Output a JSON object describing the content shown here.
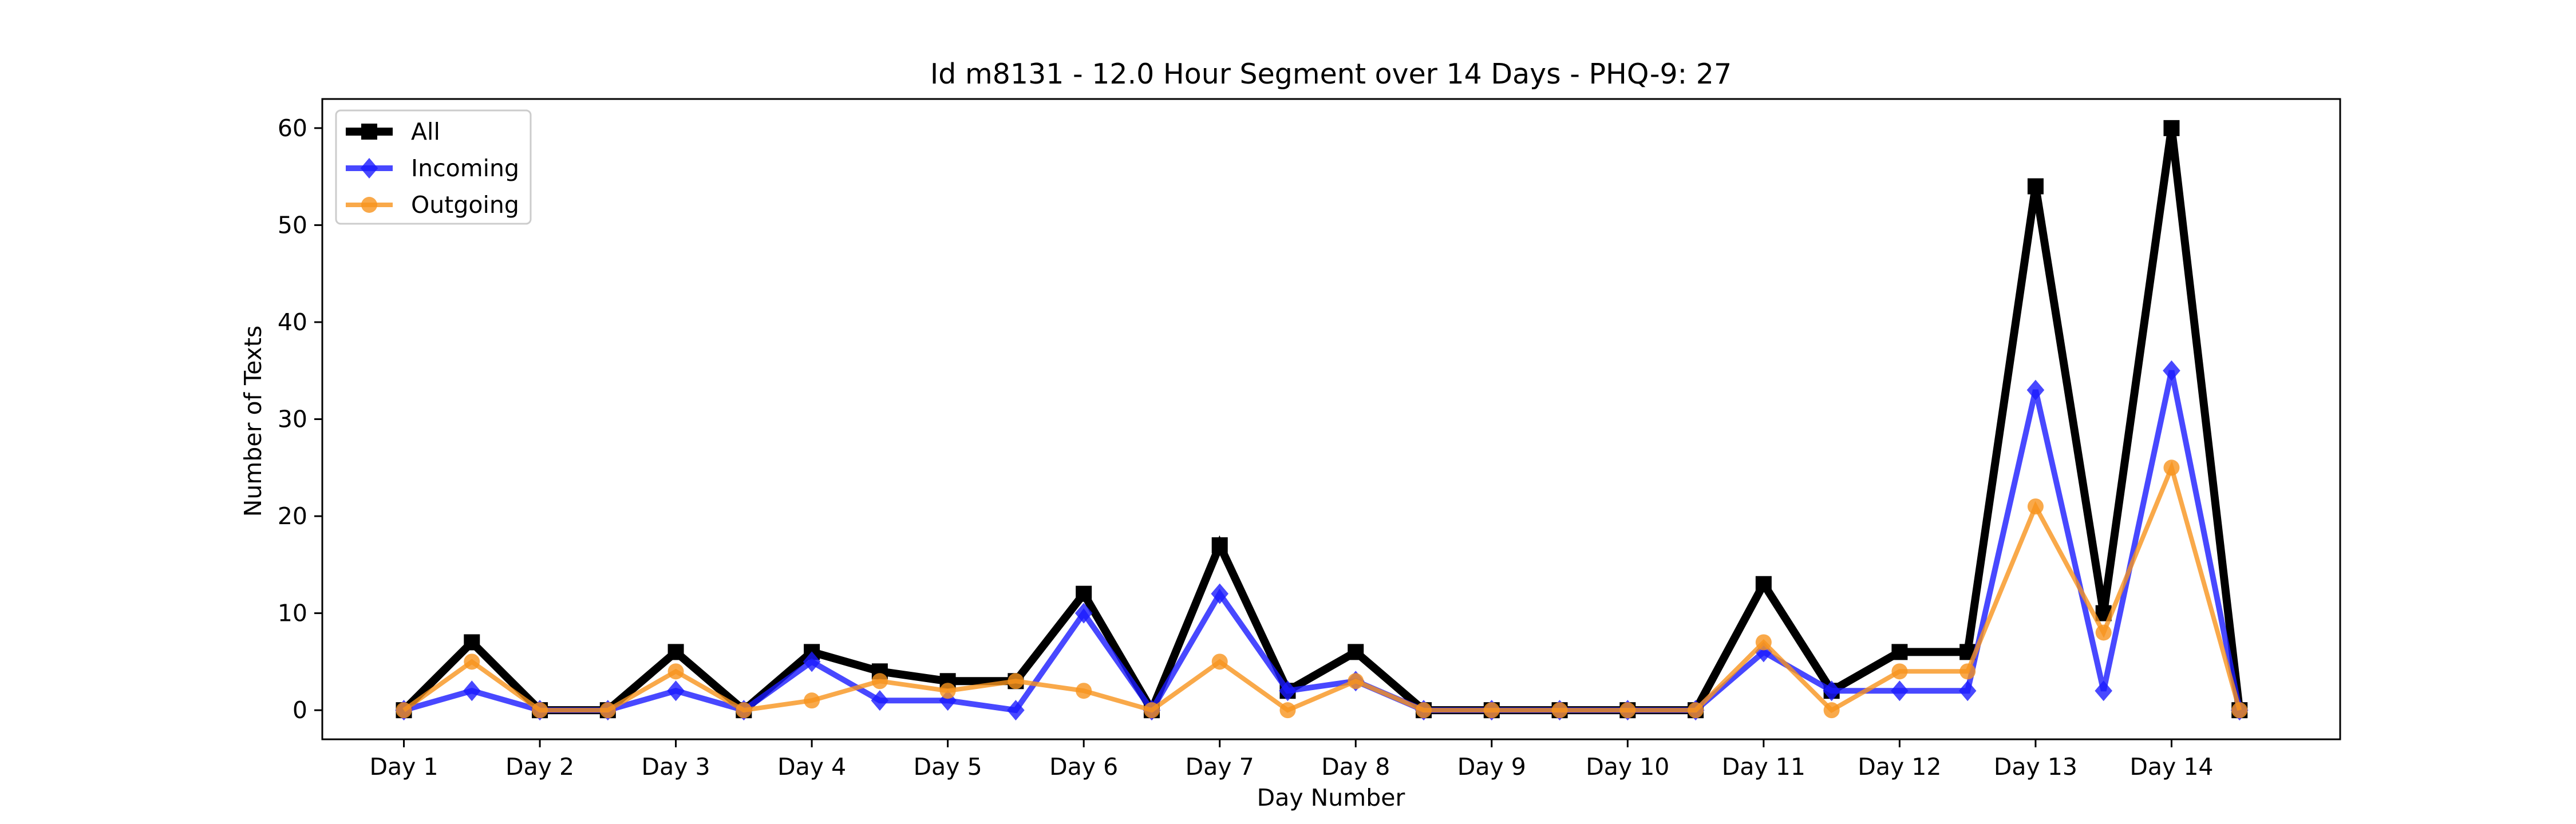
{
  "chart_data": {
    "type": "line",
    "title": "Id m8131 - 12.0 Hour Segment over 14 Days - PHQ-9: 27",
    "xlabel": "Day Number",
    "ylabel": "Number of Texts",
    "x": [
      1,
      1.5,
      2,
      2.5,
      3,
      3.5,
      4,
      4.5,
      5,
      5.5,
      6,
      6.5,
      7,
      7.5,
      8,
      8.5,
      9,
      9.5,
      10,
      10.5,
      11,
      11.5,
      12,
      12.5,
      13,
      13.5,
      14,
      14.5
    ],
    "x_ticks": [
      1,
      2,
      3,
      4,
      5,
      6,
      7,
      8,
      9,
      10,
      11,
      12,
      13,
      14
    ],
    "x_tick_labels": [
      "Day 1",
      "Day 2",
      "Day 3",
      "Day 4",
      "Day 5",
      "Day 6",
      "Day 7",
      "Day 8",
      "Day 9",
      "Day 10",
      "Day 11",
      "Day 12",
      "Day 13",
      "Day 14"
    ],
    "xlim": [
      0.4,
      15.24
    ],
    "y_ticks": [
      0,
      10,
      20,
      30,
      40,
      50,
      60
    ],
    "ylim": [
      -3,
      63
    ],
    "grid": false,
    "legend_position": "top-left",
    "series": [
      {
        "name": "All",
        "color": "#000000",
        "marker": "square",
        "values": [
          0,
          7,
          0,
          0,
          6,
          0,
          6,
          4,
          3,
          3,
          12,
          0,
          17,
          2,
          6,
          0,
          0,
          0,
          0,
          0,
          13,
          2,
          6,
          6,
          54,
          10,
          60,
          0
        ]
      },
      {
        "name": "Incoming",
        "color": "#1a1aff",
        "marker": "diamond",
        "values": [
          0,
          2,
          0,
          0,
          2,
          0,
          5,
          1,
          1,
          0,
          10,
          0,
          12,
          2,
          3,
          0,
          0,
          0,
          0,
          0,
          6,
          2,
          2,
          2,
          33,
          2,
          35,
          0
        ]
      },
      {
        "name": "Outgoing",
        "color": "#f7941d",
        "marker": "circle",
        "values": [
          0,
          5,
          0,
          0,
          4,
          0,
          1,
          3,
          2,
          3,
          2,
          0,
          5,
          0,
          3,
          0,
          0,
          0,
          0,
          0,
          7,
          0,
          4,
          4,
          21,
          8,
          25,
          0
        ]
      }
    ]
  }
}
